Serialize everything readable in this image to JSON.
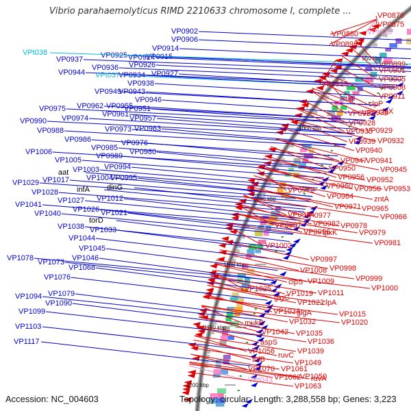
{
  "title": "Vibrio parahaemolyticus RIMD 2210633 chromosome I, complete ...",
  "footer": {
    "accession": "Accession: NC_004603",
    "stats": "Topology: circular; Length: 3,288,558 bp; Genes: 3,223"
  },
  "colors": {
    "plus_strand": "#0000cc",
    "minus_strand": "#dd0000",
    "trna": "#00bbdd",
    "rrna_like": "#ee88cc",
    "backbone": "#888888"
  },
  "kbp_marks": [
    "950 kbp",
    "1000 kbp",
    "1050 kbp",
    "1100 kbp",
    "1150 kbp",
    "1200 kbp"
  ],
  "left_labels": [
    {
      "text": "VP0902",
      "kind": "gene"
    },
    {
      "text": "VP0906",
      "kind": "gene"
    },
    {
      "text": "VP0914",
      "kind": "gene"
    },
    {
      "text": "VP0915",
      "kind": "gene"
    },
    {
      "text": "VP0924",
      "kind": "gene"
    },
    {
      "text": "VP0925",
      "kind": "gene"
    },
    {
      "text": "VP0926",
      "kind": "gene"
    },
    {
      "text": "VPt038",
      "kind": "trna"
    },
    {
      "text": "VP0937",
      "kind": "gene"
    },
    {
      "text": "VP0936",
      "kind": "gene"
    },
    {
      "text": "VP0944",
      "kind": "gene"
    },
    {
      "text": "VPt037",
      "kind": "trna"
    },
    {
      "text": "VP0934",
      "kind": "gene"
    },
    {
      "text": "VP0927",
      "kind": "gene"
    },
    {
      "text": "VP0938",
      "kind": "gene"
    },
    {
      "text": "VP0949",
      "kind": "gene"
    },
    {
      "text": "VP0943",
      "kind": "gene"
    },
    {
      "text": "VP0946",
      "kind": "gene"
    },
    {
      "text": "VP0962",
      "kind": "gene"
    },
    {
      "text": "VP0955",
      "kind": "gene"
    },
    {
      "text": "VP0975",
      "kind": "gene"
    },
    {
      "text": "VP0951",
      "kind": "gene"
    },
    {
      "text": "VP0961",
      "kind": "gene"
    },
    {
      "text": "VP0957",
      "kind": "gene"
    },
    {
      "text": "VP0974",
      "kind": "gene"
    },
    {
      "text": "VP0990",
      "kind": "gene"
    },
    {
      "text": "VP0973",
      "kind": "gene"
    },
    {
      "text": "VP0963",
      "kind": "gene"
    },
    {
      "text": "VP0988",
      "kind": "gene"
    },
    {
      "text": "VP0986",
      "kind": "gene"
    },
    {
      "text": "VP0976",
      "kind": "gene"
    },
    {
      "text": "VP0985",
      "kind": "gene"
    },
    {
      "text": "VP0980",
      "kind": "gene"
    },
    {
      "text": "VP1006",
      "kind": "gene"
    },
    {
      "text": "VP0989",
      "kind": "gene"
    },
    {
      "text": "VP1005",
      "kind": "gene"
    },
    {
      "text": "VP0994",
      "kind": "gene"
    },
    {
      "text": "aat",
      "kind": "gene"
    },
    {
      "text": "VP1003",
      "kind": "gene"
    },
    {
      "text": "VP1004",
      "kind": "gene"
    },
    {
      "text": "VP0995",
      "kind": "gene"
    },
    {
      "text": "VP1029",
      "kind": "gene"
    },
    {
      "text": "VP1017",
      "kind": "gene"
    },
    {
      "text": "dinG",
      "kind": "gene"
    },
    {
      "text": "VP1028",
      "kind": "gene"
    },
    {
      "text": "infA",
      "kind": "gene"
    },
    {
      "text": "VP1027",
      "kind": "gene"
    },
    {
      "text": "VP1012",
      "kind": "gene"
    },
    {
      "text": "VP1041",
      "kind": "gene"
    },
    {
      "text": "VP1026",
      "kind": "gene"
    },
    {
      "text": "VP1021",
      "kind": "gene"
    },
    {
      "text": "VP1040",
      "kind": "gene"
    },
    {
      "text": "torD",
      "kind": "gene"
    },
    {
      "text": "VP1038",
      "kind": "gene"
    },
    {
      "text": "VP1033",
      "kind": "gene"
    },
    {
      "text": "VP1044",
      "kind": "gene"
    },
    {
      "text": "VP1045",
      "kind": "gene"
    },
    {
      "text": "VP1078",
      "kind": "gene"
    },
    {
      "text": "VP1073",
      "kind": "gene"
    },
    {
      "text": "VP1046",
      "kind": "gene"
    },
    {
      "text": "VP1068",
      "kind": "gene"
    },
    {
      "text": "VP1076",
      "kind": "gene"
    },
    {
      "text": "VP1079",
      "kind": "gene"
    },
    {
      "text": "VP1094",
      "kind": "gene"
    },
    {
      "text": "VP1090",
      "kind": "gene"
    },
    {
      "text": "VP1099",
      "kind": "gene"
    },
    {
      "text": "VP1103",
      "kind": "gene"
    },
    {
      "text": "VP1117",
      "kind": "gene"
    }
  ],
  "right_labels": [
    {
      "text": "VP0870",
      "kind": "gene"
    },
    {
      "text": "VP0875",
      "kind": "gene"
    },
    {
      "text": "VP0880",
      "kind": "gene"
    },
    {
      "text": "VPt036",
      "kind": "rrna"
    },
    {
      "text": "VP0898",
      "kind": "gene"
    },
    {
      "text": "VP0899",
      "kind": "gene"
    },
    {
      "text": "VP0901",
      "kind": "gene"
    },
    {
      "text": "VP0905",
      "kind": "gene"
    },
    {
      "text": "VP0913",
      "kind": "gene"
    },
    {
      "text": "VP0908",
      "kind": "gene"
    },
    {
      "text": "VP0911",
      "kind": "gene"
    },
    {
      "text": "tig",
      "kind": "gene"
    },
    {
      "text": "clpP",
      "kind": "gene"
    },
    {
      "text": "clpX",
      "kind": "gene"
    },
    {
      "text": "VP0922",
      "kind": "gene"
    },
    {
      "text": "VP0928",
      "kind": "gene"
    },
    {
      "text": "VP0933",
      "kind": "gene"
    },
    {
      "text": "VP0935",
      "kind": "gene"
    },
    {
      "text": "VP0929",
      "kind": "gene"
    },
    {
      "text": "VP0939",
      "kind": "gene"
    },
    {
      "text": "VP0932",
      "kind": "gene"
    },
    {
      "text": "VP0940",
      "kind": "gene"
    },
    {
      "text": "VP0947",
      "kind": "gene"
    },
    {
      "text": "VP0941",
      "kind": "gene"
    },
    {
      "text": "VP0950",
      "kind": "gene"
    },
    {
      "text": "VP0945",
      "kind": "gene"
    },
    {
      "text": "VP0956",
      "kind": "gene"
    },
    {
      "text": "VP0952",
      "kind": "gene"
    },
    {
      "text": "VP0960",
      "kind": "gene"
    },
    {
      "text": "VP0958",
      "kind": "gene"
    },
    {
      "text": "VP0953",
      "kind": "gene"
    },
    {
      "text": "VP0972",
      "kind": "gene"
    },
    {
      "text": "VP0964",
      "kind": "gene"
    },
    {
      "text": "zntA",
      "kind": "gene"
    },
    {
      "text": "VP0971",
      "kind": "gene"
    },
    {
      "text": "VP0965",
      "kind": "gene"
    },
    {
      "text": "VP0984",
      "kind": "gene"
    },
    {
      "text": "VP0966",
      "kind": "gene"
    },
    {
      "text": "VP0977",
      "kind": "gene"
    },
    {
      "text": "VP0987",
      "kind": "gene"
    },
    {
      "text": "VP0982",
      "kind": "gene"
    },
    {
      "text": "VP0978",
      "kind": "gene"
    },
    {
      "text": "lpxK",
      "kind": "gene"
    },
    {
      "text": "VP0979",
      "kind": "gene"
    },
    {
      "text": "VP0981",
      "kind": "gene"
    },
    {
      "text": "VP1002",
      "kind": "gene"
    },
    {
      "text": "VP0996",
      "kind": "gene"
    },
    {
      "text": "VP0997",
      "kind": "gene"
    },
    {
      "text": "VP0998",
      "kind": "gene"
    },
    {
      "text": "VP0999",
      "kind": "gene"
    },
    {
      "text": "VP1008",
      "kind": "gene"
    },
    {
      "text": "clpS",
      "kind": "gene"
    },
    {
      "text": "VP1009",
      "kind": "gene"
    },
    {
      "text": "VP1000",
      "kind": "gene"
    },
    {
      "text": "VP1025",
      "kind": "gene"
    },
    {
      "text": "VP1019",
      "kind": "gene"
    },
    {
      "text": "VP1011",
      "kind": "gene"
    },
    {
      "text": "glgC",
      "kind": "gene"
    },
    {
      "text": "VP1022",
      "kind": "gene"
    },
    {
      "text": "clpA",
      "kind": "gene"
    },
    {
      "text": "VP1034",
      "kind": "gene"
    },
    {
      "text": "glgA",
      "kind": "gene"
    },
    {
      "text": "VP1015",
      "kind": "gene"
    },
    {
      "text": "mukB",
      "kind": "gene"
    },
    {
      "text": "VP1032",
      "kind": "gene"
    },
    {
      "text": "VP1020",
      "kind": "gene"
    },
    {
      "text": "VP1042",
      "kind": "gene"
    },
    {
      "text": "VP1035",
      "kind": "gene"
    },
    {
      "text": "aspS",
      "kind": "gene"
    },
    {
      "text": "VP1036",
      "kind": "gene"
    },
    {
      "text": "VP1039",
      "kind": "gene"
    },
    {
      "text": "VP1056",
      "kind": "gene"
    },
    {
      "text": "ruvC",
      "kind": "gene"
    },
    {
      "text": "tolB",
      "kind": "gene"
    },
    {
      "text": "VP1049",
      "kind": "gene"
    },
    {
      "text": "VP1070",
      "kind": "gene"
    },
    {
      "text": "VP1061",
      "kind": "gene"
    },
    {
      "text": "VP1050",
      "kind": "gene"
    },
    {
      "text": "VP1062",
      "kind": "gene"
    },
    {
      "text": "ruvA",
      "kind": "gene"
    },
    {
      "text": "VPt043",
      "kind": "rrna"
    },
    {
      "text": "VP1063",
      "kind": "gene"
    }
  ]
}
